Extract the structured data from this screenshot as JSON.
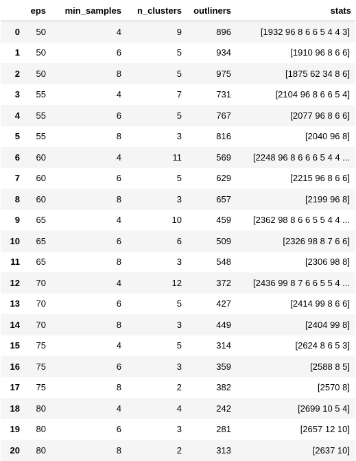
{
  "table": {
    "columns": [
      "eps",
      "min_samples",
      "n_clusters",
      "outliners",
      "stats"
    ],
    "rows": [
      {
        "index": "0",
        "eps": "50",
        "min_samples": "4",
        "n_clusters": "9",
        "outliners": "896",
        "stats": "[1932 96 8 6 6 5 4 4 3]"
      },
      {
        "index": "1",
        "eps": "50",
        "min_samples": "6",
        "n_clusters": "5",
        "outliners": "934",
        "stats": "[1910 96 8 6 6]"
      },
      {
        "index": "2",
        "eps": "50",
        "min_samples": "8",
        "n_clusters": "5",
        "outliners": "975",
        "stats": "[1875 62 34 8 6]"
      },
      {
        "index": "3",
        "eps": "55",
        "min_samples": "4",
        "n_clusters": "7",
        "outliners": "731",
        "stats": "[2104 96 8 6 6 5 4]"
      },
      {
        "index": "4",
        "eps": "55",
        "min_samples": "6",
        "n_clusters": "5",
        "outliners": "767",
        "stats": "[2077 96 8 6 6]"
      },
      {
        "index": "5",
        "eps": "55",
        "min_samples": "8",
        "n_clusters": "3",
        "outliners": "816",
        "stats": "[2040 96 8]"
      },
      {
        "index": "6",
        "eps": "60",
        "min_samples": "4",
        "n_clusters": "11",
        "outliners": "569",
        "stats": "[2248 96 8 6 6 6 5 4 4 ..."
      },
      {
        "index": "7",
        "eps": "60",
        "min_samples": "6",
        "n_clusters": "5",
        "outliners": "629",
        "stats": "[2215 96 8 6 6]"
      },
      {
        "index": "8",
        "eps": "60",
        "min_samples": "8",
        "n_clusters": "3",
        "outliners": "657",
        "stats": "[2199 96 8]"
      },
      {
        "index": "9",
        "eps": "65",
        "min_samples": "4",
        "n_clusters": "10",
        "outliners": "459",
        "stats": "[2362 98 8 6 6 5 5 4 4 ..."
      },
      {
        "index": "10",
        "eps": "65",
        "min_samples": "6",
        "n_clusters": "6",
        "outliners": "509",
        "stats": "[2326 98 8 7 6 6]"
      },
      {
        "index": "11",
        "eps": "65",
        "min_samples": "8",
        "n_clusters": "3",
        "outliners": "548",
        "stats": "[2306 98 8]"
      },
      {
        "index": "12",
        "eps": "70",
        "min_samples": "4",
        "n_clusters": "12",
        "outliners": "372",
        "stats": "[2436 99 8 7 6 6 5 5 4 ..."
      },
      {
        "index": "13",
        "eps": "70",
        "min_samples": "6",
        "n_clusters": "5",
        "outliners": "427",
        "stats": "[2414 99 8 6 6]"
      },
      {
        "index": "14",
        "eps": "70",
        "min_samples": "8",
        "n_clusters": "3",
        "outliners": "449",
        "stats": "[2404 99 8]"
      },
      {
        "index": "15",
        "eps": "75",
        "min_samples": "4",
        "n_clusters": "5",
        "outliners": "314",
        "stats": "[2624 8 6 5 3]"
      },
      {
        "index": "16",
        "eps": "75",
        "min_samples": "6",
        "n_clusters": "3",
        "outliners": "359",
        "stats": "[2588 8 5]"
      },
      {
        "index": "17",
        "eps": "75",
        "min_samples": "8",
        "n_clusters": "2",
        "outliners": "382",
        "stats": "[2570 8]"
      },
      {
        "index": "18",
        "eps": "80",
        "min_samples": "4",
        "n_clusters": "4",
        "outliners": "242",
        "stats": "[2699 10 5 4]"
      },
      {
        "index": "19",
        "eps": "80",
        "min_samples": "6",
        "n_clusters": "3",
        "outliners": "281",
        "stats": "[2657 12 10]"
      },
      {
        "index": "20",
        "eps": "80",
        "min_samples": "8",
        "n_clusters": "2",
        "outliners": "313",
        "stats": "[2637 10]"
      }
    ]
  },
  "colors": {
    "stripe": "#f5f5f5",
    "header_border": "#bdbdbd"
  }
}
